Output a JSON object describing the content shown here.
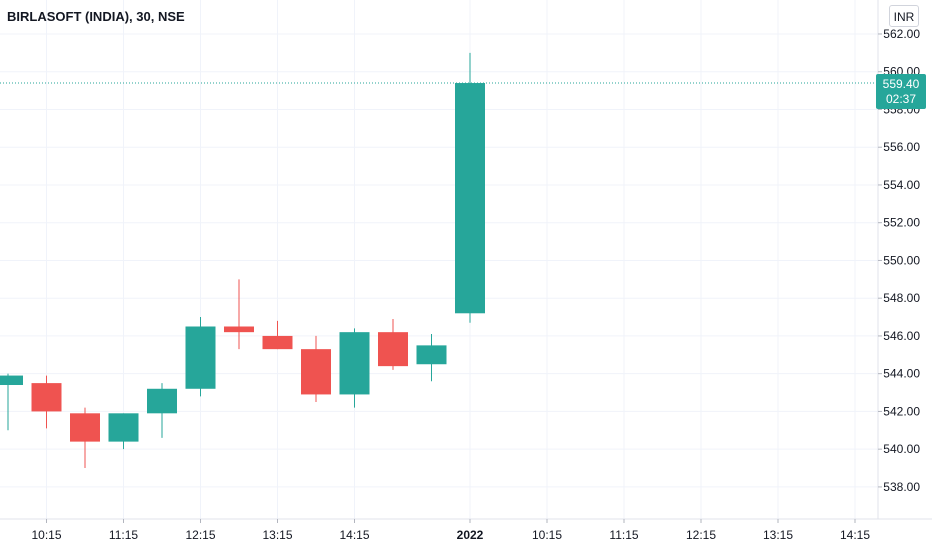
{
  "header": {
    "symbol_title": "BIRLASOFT (INDIA), 30, NSE",
    "currency": "INR"
  },
  "last_price": {
    "value_label": "559.40",
    "countdown": "02:37",
    "value": 559.4
  },
  "colors": {
    "up": "#26a69a",
    "down": "#ef5350",
    "grid": "#f0f3fa",
    "axis_text": "#131722",
    "last_price_line": "#26a69a"
  },
  "chart_data": {
    "type": "candlestick",
    "title": "BIRLASOFT (INDIA), 30, NSE",
    "y_ticks": [
      538,
      540,
      542,
      544,
      546,
      548,
      550,
      552,
      554,
      556,
      558,
      560,
      562
    ],
    "y_tick_labels": [
      "538.00",
      "540.00",
      "542.00",
      "544.00",
      "546.00",
      "548.00",
      "550.00",
      "552.00",
      "554.00",
      "556.00",
      "558.00",
      "560.00",
      "562.00"
    ],
    "ylim": [
      536.3,
      563.8
    ],
    "x_tick_labels": [
      "10:15",
      "11:15",
      "12:15",
      "13:15",
      "14:15",
      "2022",
      "10:15",
      "11:15",
      "12:15",
      "13:15",
      "14:15"
    ],
    "x_tick_slots": [
      1,
      3,
      5,
      7,
      9,
      12,
      14,
      16,
      18,
      20,
      22
    ],
    "candles": [
      {
        "open": 543.4,
        "high": 544.0,
        "low": 541.0,
        "close": 543.9
      },
      {
        "open": 543.5,
        "high": 543.9,
        "low": 541.1,
        "close": 542.0
      },
      {
        "open": 541.9,
        "high": 542.2,
        "low": 539.0,
        "close": 540.4
      },
      {
        "open": 540.4,
        "high": 541.9,
        "low": 540.0,
        "close": 541.9
      },
      {
        "open": 541.9,
        "high": 543.5,
        "low": 540.6,
        "close": 543.2
      },
      {
        "open": 543.2,
        "high": 547.0,
        "low": 542.8,
        "close": 546.5
      },
      {
        "open": 546.5,
        "high": 549.0,
        "low": 545.3,
        "close": 546.2
      },
      {
        "open": 546.0,
        "high": 546.8,
        "low": 545.3,
        "close": 545.3
      },
      {
        "open": 545.3,
        "high": 546.0,
        "low": 542.5,
        "close": 542.9
      },
      {
        "open": 542.9,
        "high": 546.4,
        "low": 542.2,
        "close": 546.2
      },
      {
        "open": 546.2,
        "high": 546.9,
        "low": 544.2,
        "close": 544.4
      },
      {
        "open": 544.5,
        "high": 546.1,
        "low": 543.6,
        "close": 545.5
      },
      {
        "open": 547.2,
        "high": 561.0,
        "low": 546.7,
        "close": 559.4
      }
    ]
  }
}
